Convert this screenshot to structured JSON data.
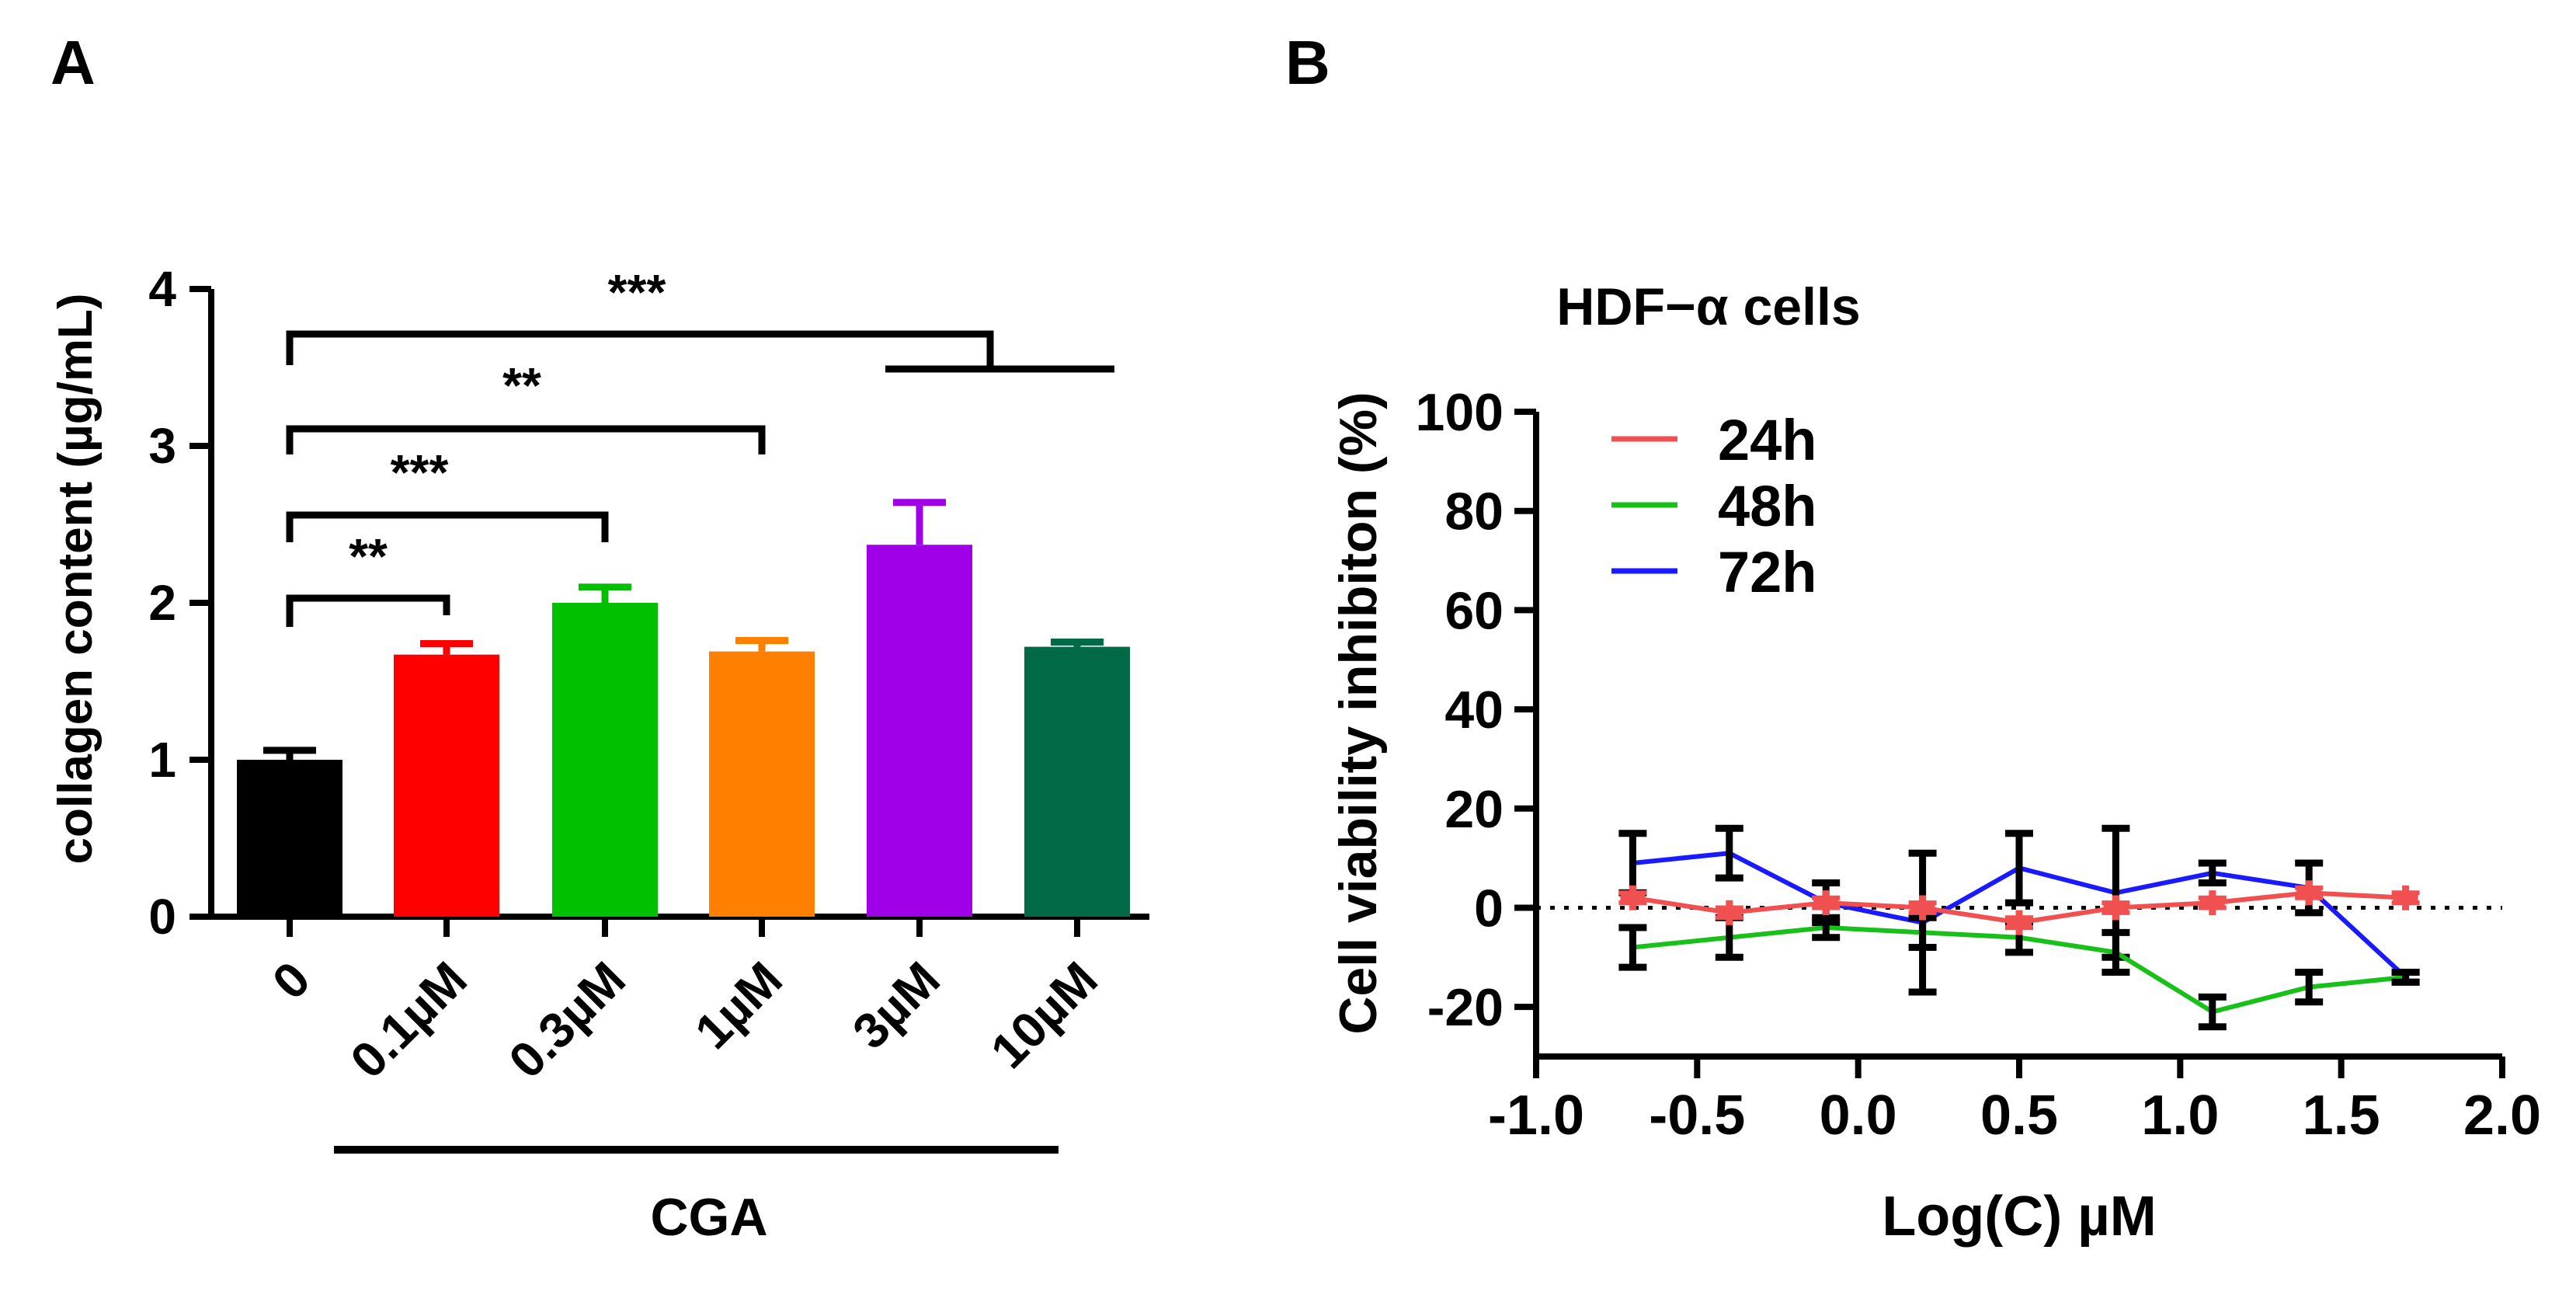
{
  "panels": [
    {
      "label": "A"
    },
    {
      "label": "B"
    }
  ],
  "chart_data": [
    {
      "type": "bar",
      "panel": "A",
      "categories": [
        "0",
        "0.1µM",
        "0.3µM",
        "1µM",
        "3µM",
        "10µM"
      ],
      "values": [
        1.0,
        1.67,
        2.0,
        1.69,
        2.37,
        1.72
      ],
      "errors": [
        0.06,
        0.07,
        0.1,
        0.07,
        0.27,
        0.03
      ],
      "colors": [
        "#000000",
        "#ff0000",
        "#00c000",
        "#ff8000",
        "#a000e8",
        "#006a46"
      ],
      "ylabel": "collagen content (µg/mL)",
      "ylim": [
        0,
        4
      ],
      "yticks": [
        "0",
        "1",
        "2",
        "3",
        "4"
      ],
      "group_label": "CGA",
      "significance": [
        {
          "from": "0",
          "to": "0.1µM",
          "stars": "**"
        },
        {
          "from": "0",
          "to": "0.3µM",
          "stars": "***"
        },
        {
          "from": "0",
          "to": "1µM",
          "stars": "**"
        },
        {
          "from": "0",
          "to": [
            "3µM",
            "10µM"
          ],
          "stars": "***"
        }
      ]
    },
    {
      "type": "line",
      "panel": "B",
      "title": "HDF−α cells",
      "xlabel": "Log(C) µM",
      "ylabel": "Cell viability inhibiton (%)",
      "xlim": [
        -1.0,
        2.0
      ],
      "ylim": [
        -30,
        100
      ],
      "xticks": [
        "-1.0",
        "-0.5",
        "0.0",
        "0.5",
        "1.0",
        "1.5",
        "2.0"
      ],
      "yticks": [
        "-20",
        "0",
        "20",
        "40",
        "60",
        "80",
        "100"
      ],
      "reference_line": 0,
      "x": [
        -0.7,
        -0.4,
        -0.1,
        0.2,
        0.5,
        0.8,
        1.1,
        1.4,
        1.7
      ],
      "series": [
        {
          "name": "24h",
          "color": "#f05050",
          "values": [
            2,
            -1,
            1,
            0,
            -3,
            0,
            1,
            3,
            2
          ],
          "errors": [
            1,
            1,
            1,
            1,
            1,
            1,
            1,
            1,
            1
          ]
        },
        {
          "name": "48h",
          "color": "#19c019",
          "values": [
            -8,
            -6,
            -4,
            -5,
            -6,
            -9,
            -21,
            -16,
            -14
          ],
          "errors": [
            4,
            4,
            2,
            3,
            3,
            4,
            3,
            3,
            1
          ]
        },
        {
          "name": "72h",
          "color": "#1a1aff",
          "values": [
            9,
            11,
            1,
            -3,
            8,
            3,
            7,
            4,
            -14
          ],
          "errors": [
            6,
            5,
            4,
            14,
            7,
            13,
            2,
            5,
            1
          ]
        }
      ]
    }
  ]
}
